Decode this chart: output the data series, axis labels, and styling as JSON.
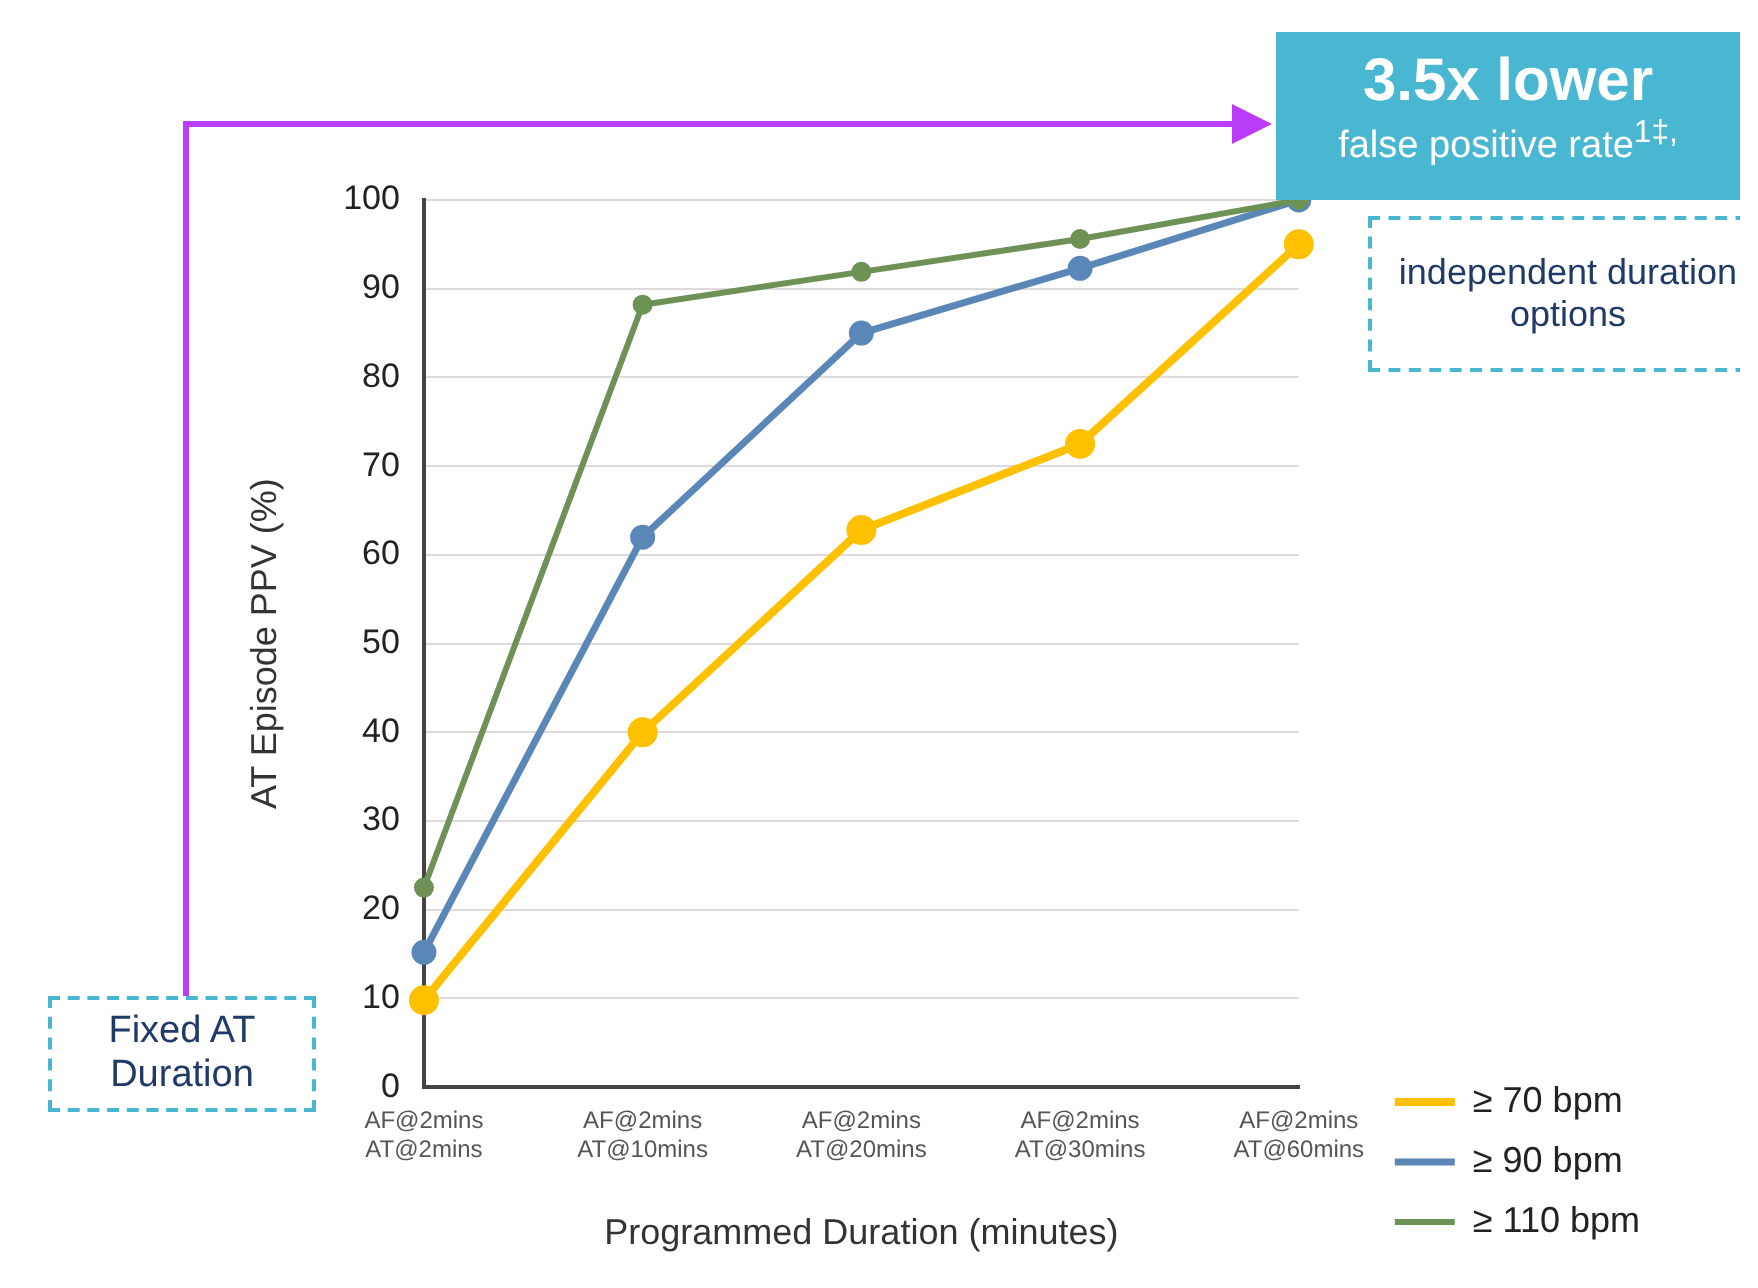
{
  "chart_data": {
    "type": "line",
    "xlabel": "Programmed Duration (minutes)",
    "ylabel": "AT Episode PPV (%)",
    "categories": [
      "AF@2mins\nAT@2mins",
      "AF@2mins\nAT@10mins",
      "AF@2mins\nAT@20mins",
      "AF@2mins\nAT@30mins",
      "AF@2mins\nAT@60mins"
    ],
    "series": [
      {
        "name": "≥ 70 bpm",
        "color": "#ffc000",
        "values": [
          9.8,
          40,
          62.8,
          72.5,
          95
        ]
      },
      {
        "name": "≥ 90 bpm",
        "color": "#5b87b8",
        "values": [
          15.2,
          62,
          85,
          92.3,
          100
        ]
      },
      {
        "name": "≥ 110 bpm",
        "color": "#6e9156",
        "values": [
          22.5,
          88.2,
          91.9,
          95.6,
          100
        ]
      }
    ],
    "ylim": [
      0,
      100
    ],
    "yticks": [
      0,
      10,
      20,
      30,
      40,
      50,
      60,
      70,
      80,
      90,
      100
    ],
    "grid": "y",
    "legend": "bottom right",
    "marker": "circle",
    "line_style": "solid",
    "annotations": [
      "3.5x lower",
      "false positive rate$^{1‡,}$",
      "independent duration options",
      "Fixed AT Duration"
    ]
  }
}
